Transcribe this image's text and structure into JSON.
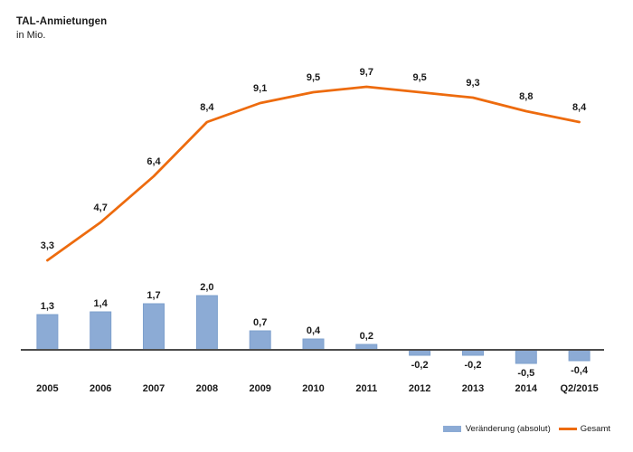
{
  "header": {
    "title": "TAL-Anmietungen",
    "subtitle": "in Mio."
  },
  "legend": {
    "bar_label": "Veränderung (absolut)",
    "line_label": "Gesamt"
  },
  "colors": {
    "bar_fill": "#8CABD5",
    "bar_border": "#7EA0CD",
    "line": "#ED6B0E",
    "axis": "#4C4C4C",
    "text": "#1A1A1A"
  },
  "chart_data": {
    "type": "combo",
    "title": "TAL-Anmietungen",
    "subtitle": "in Mio.",
    "xlabel": "",
    "ylabel": "",
    "categories": [
      "2005",
      "2006",
      "2007",
      "2008",
      "2009",
      "2010",
      "2011",
      "2012",
      "2013",
      "2014",
      "Q2/2015"
    ],
    "series": [
      {
        "name": "Veränderung (absolut)",
        "type": "bar",
        "values": [
          1.3,
          1.4,
          1.7,
          2.0,
          0.7,
          0.4,
          0.2,
          -0.2,
          -0.2,
          -0.5,
          -0.4
        ]
      },
      {
        "name": "Gesamt",
        "type": "line",
        "values": [
          3.3,
          4.7,
          6.4,
          8.4,
          9.1,
          9.5,
          9.7,
          9.5,
          9.3,
          8.8,
          8.4
        ]
      }
    ],
    "value_labels_visible": true,
    "decimal_separator": ",",
    "axis": {
      "y_axis_visible": false,
      "gridlines": false,
      "zero_line": true,
      "y_range_hint": [
        -1,
        10.5
      ]
    },
    "legend_position": "bottom-right"
  }
}
